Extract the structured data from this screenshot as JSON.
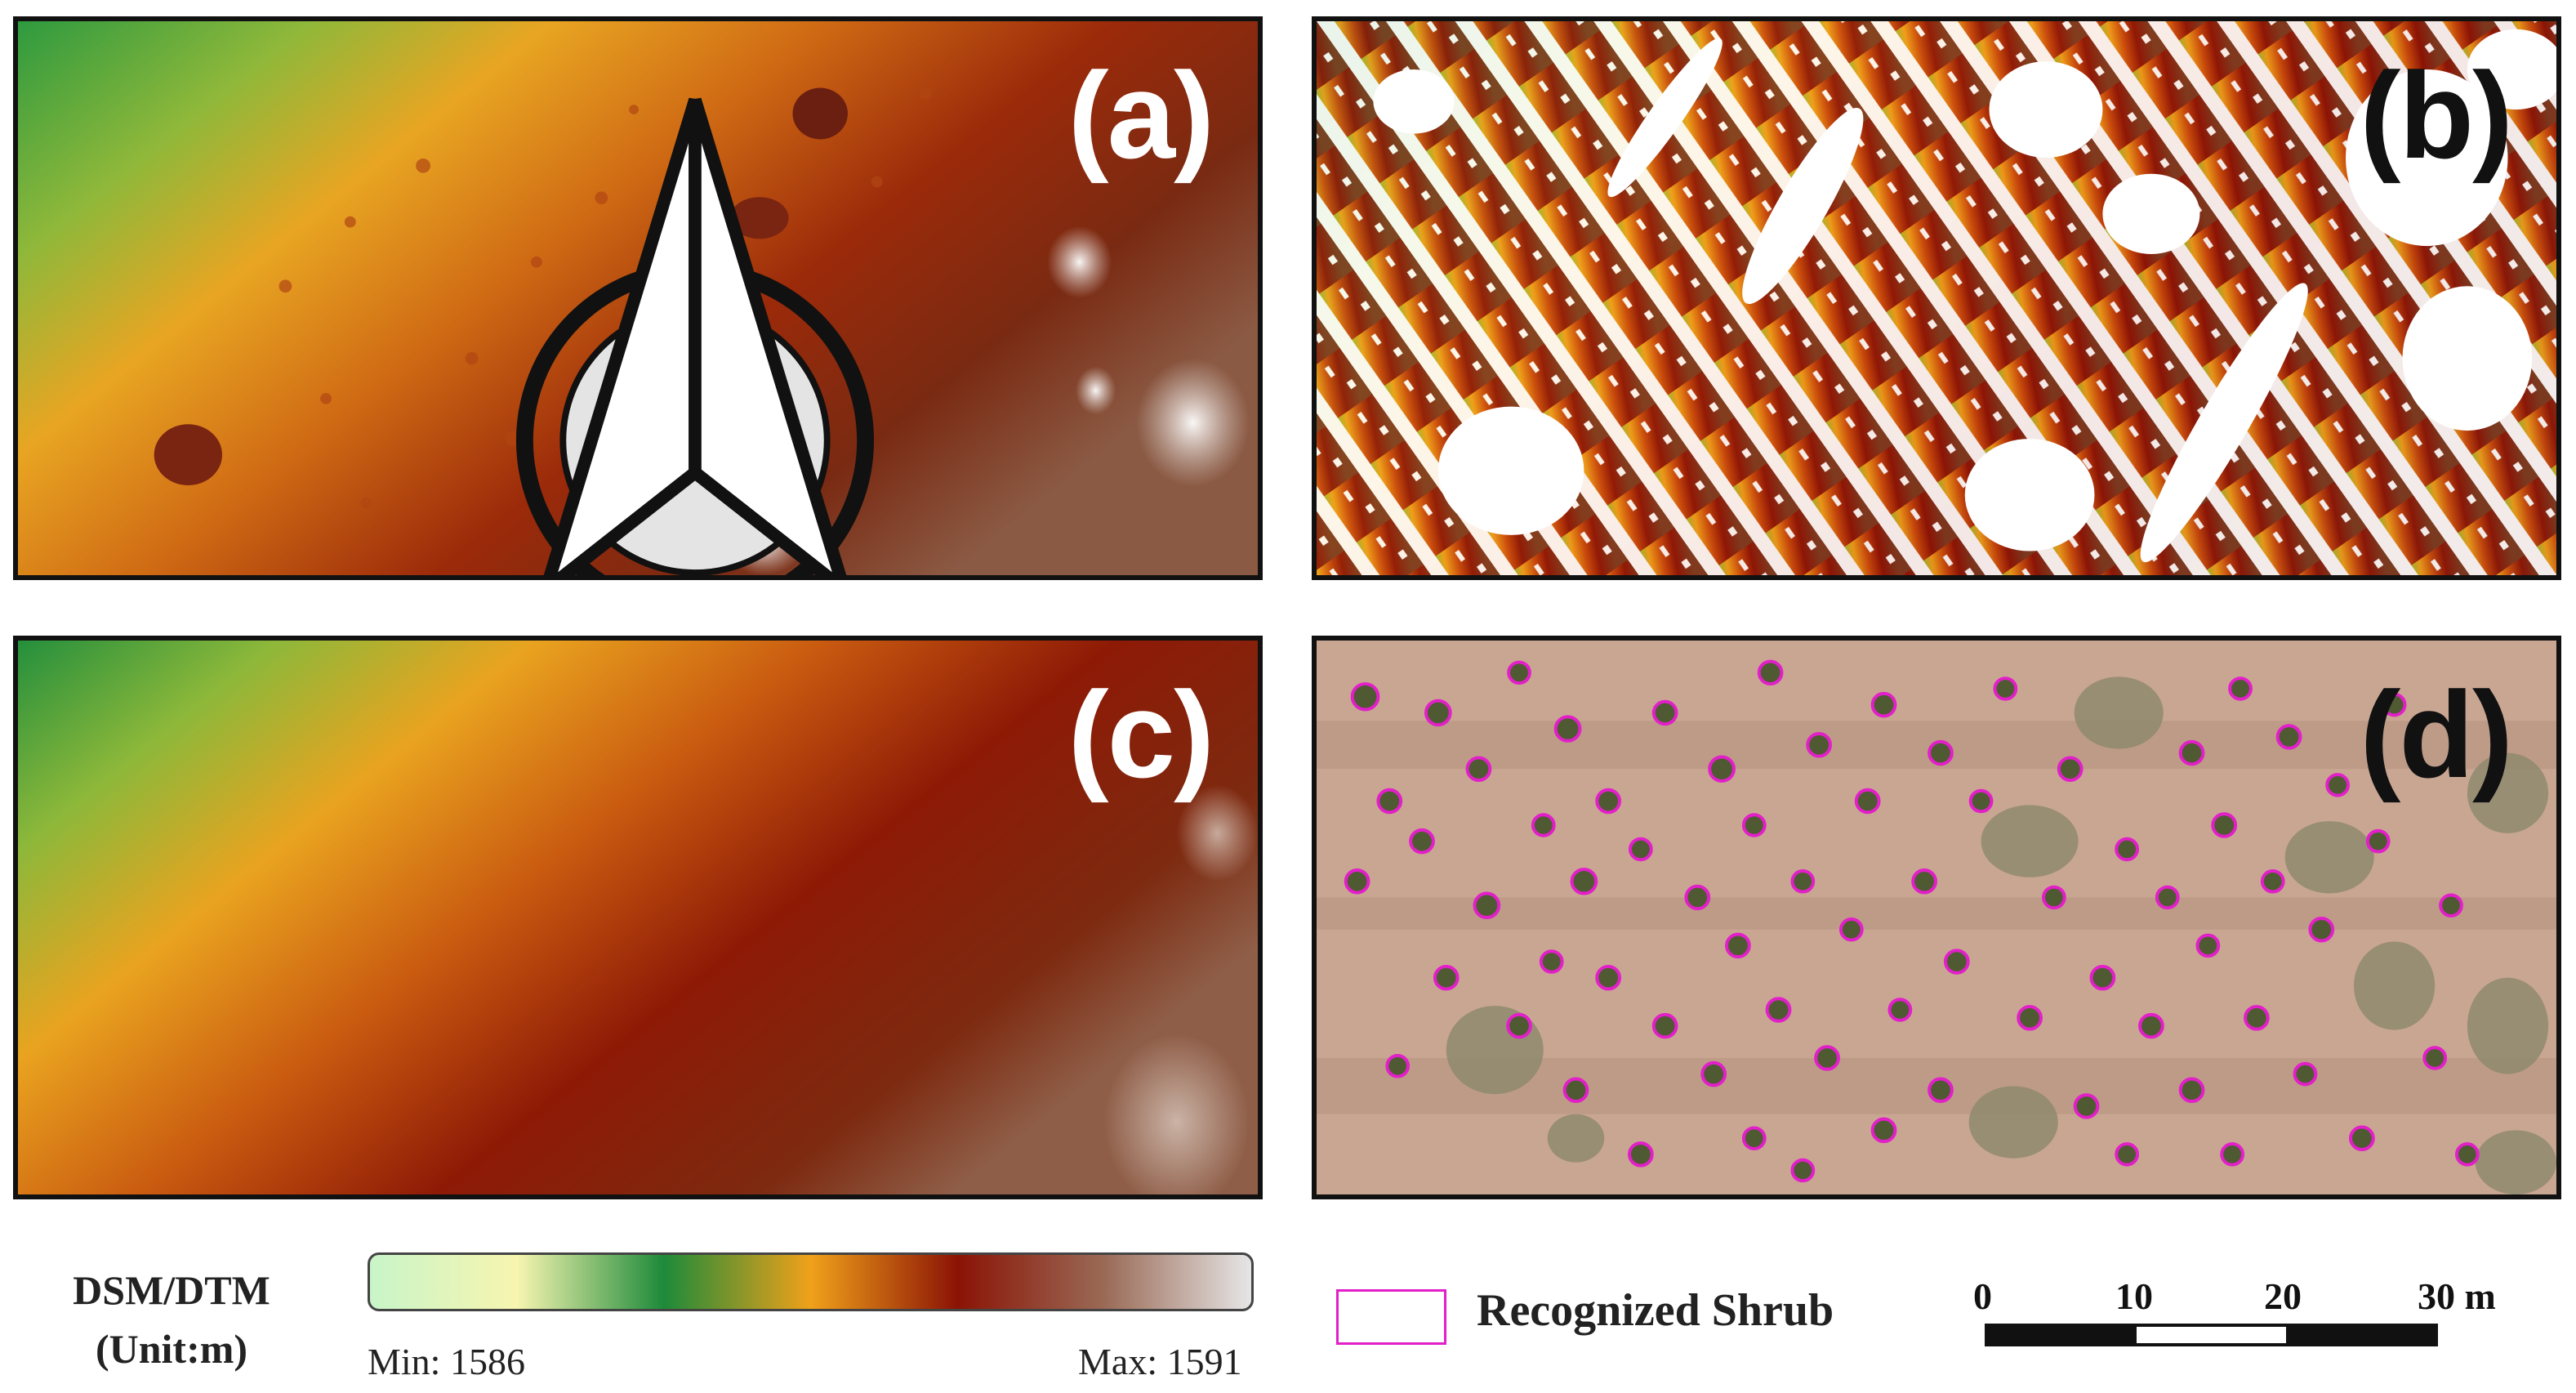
{
  "panels": {
    "a": {
      "label": "(a)",
      "description_kind": "DSM"
    },
    "b": {
      "label": "(b)"
    },
    "c": {
      "label": "(c)"
    },
    "d": {
      "label": "(d)"
    }
  },
  "legend": {
    "title_line1": "DSM/DTM",
    "title_line2": "(Unit:m)",
    "min_label": "Min: 1586",
    "max_label": "Max: 1591",
    "colors": [
      "#c8f5c8",
      "#f7f5b0",
      "#1d8a3a",
      "#f0a11a",
      "#8b1305",
      "#9a6a56",
      "#e6e6e6"
    ]
  },
  "shrub_legend": {
    "label": "Recognized Shrub",
    "color": "#e21fc9"
  },
  "scale_bar": {
    "ticks": [
      "0",
      "10",
      "20",
      "30 m"
    ]
  }
}
